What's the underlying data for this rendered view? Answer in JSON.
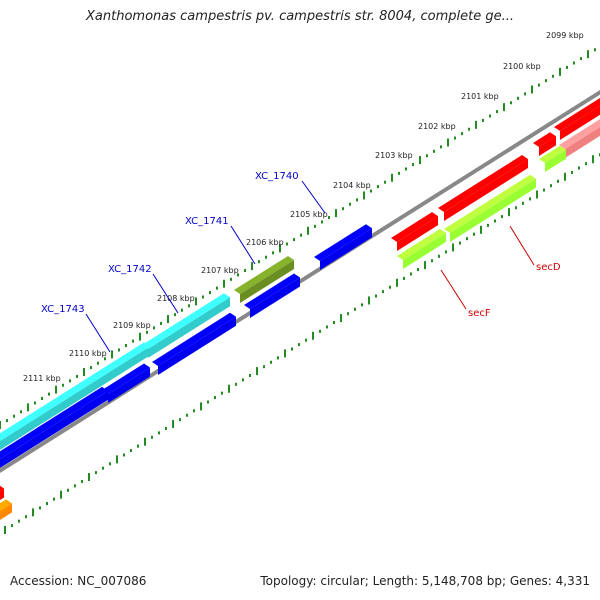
{
  "title": "Xanthomonas campestris pv. campestris str. 8004, complete ge...",
  "footer": {
    "accession": "Accession: NC_007086",
    "summary": "Topology: circular; Length: 5,148,708 bp; Genes: 4,331"
  },
  "ruler": {
    "unit": "kbp",
    "labels": [
      "2099 kbp",
      "2100 kbp",
      "2101 kbp",
      "2102 kbp",
      "2103 kbp",
      "2104 kbp",
      "2105 kbp",
      "2106 kbp",
      "2107 kbp",
      "2108 kbp",
      "2109 kbp",
      "2110 kbp",
      "2111 kbp"
    ]
  },
  "gene_labels": [
    {
      "name": "XC_1740",
      "color": "#0000cc"
    },
    {
      "name": "XC_1741",
      "color": "#0000cc"
    },
    {
      "name": "XC_1742",
      "color": "#0000cc"
    },
    {
      "name": "XC_1743",
      "color": "#0000cc"
    },
    {
      "name": "secD",
      "color": "#cc0000"
    },
    {
      "name": "secF",
      "color": "#cc0000"
    }
  ],
  "colors": {
    "cyan": "#33cccc",
    "blue": "#0000ee",
    "olive": "#6b8e23",
    "red": "#ff0000",
    "pink": "#f08080",
    "lime": "#99ff33",
    "orange": "#ff8800",
    "backbone": "#888888",
    "tick": "#228b22"
  }
}
